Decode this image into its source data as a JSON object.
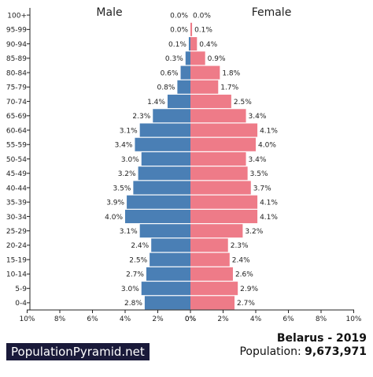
{
  "chart_data": {
    "type": "bar",
    "orientation": "horizontal-pyramid",
    "categories": [
      "100+",
      "95-99",
      "90-94",
      "85-89",
      "80-84",
      "75-79",
      "70-74",
      "65-69",
      "60-64",
      "55-59",
      "50-54",
      "45-49",
      "40-44",
      "35-39",
      "30-34",
      "25-29",
      "20-24",
      "15-19",
      "10-14",
      "5-9",
      "0-4"
    ],
    "series": [
      {
        "name": "Male",
        "color": "#4a7fb5",
        "values": [
          0.0,
          0.0,
          0.1,
          0.3,
          0.6,
          0.8,
          1.4,
          2.3,
          3.1,
          3.4,
          3.0,
          3.2,
          3.5,
          3.9,
          4.0,
          3.1,
          2.4,
          2.5,
          2.7,
          3.0,
          2.8
        ],
        "labels": [
          "0.0%",
          "0.0%",
          "0.1%",
          "0.3%",
          "0.6%",
          "0.8%",
          "1.4%",
          "2.3%",
          "3.1%",
          "3.4%",
          "3.0%",
          "3.2%",
          "3.5%",
          "3.9%",
          "4.0%",
          "3.1%",
          "2.4%",
          "2.5%",
          "2.7%",
          "3.0%",
          "2.8%"
        ]
      },
      {
        "name": "Female",
        "color": "#ee7b88",
        "values": [
          0.0,
          0.1,
          0.4,
          0.9,
          1.8,
          1.7,
          2.5,
          3.4,
          4.1,
          4.0,
          3.4,
          3.5,
          3.7,
          4.1,
          4.1,
          3.2,
          2.3,
          2.4,
          2.6,
          2.9,
          2.7
        ],
        "labels": [
          "0.0%",
          "0.1%",
          "0.4%",
          "0.9%",
          "1.8%",
          "1.7%",
          "2.5%",
          "3.4%",
          "4.1%",
          "4.0%",
          "3.4%",
          "3.5%",
          "3.7%",
          "4.1%",
          "4.1%",
          "3.2%",
          "2.3%",
          "2.4%",
          "2.6%",
          "2.9%",
          "2.7%"
        ]
      }
    ],
    "xlim": [
      0,
      10
    ],
    "x_ticks_left": [
      "10%",
      "8%",
      "6%",
      "4%",
      "2%",
      "0%"
    ],
    "x_ticks_right": [
      "0%",
      "2%",
      "4%",
      "6%",
      "8%",
      "10%"
    ],
    "grid": false
  },
  "branding": {
    "label": "PopulationPyramid.net"
  },
  "footer": {
    "country_year": "Belarus - 2019",
    "population_label": "Population:",
    "population_value": "9,673,971"
  }
}
